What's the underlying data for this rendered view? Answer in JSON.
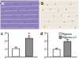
{
  "images": [
    {
      "label": "a"
    },
    {
      "label": "b"
    }
  ],
  "chart_data": [
    {
      "type": "bar",
      "title": "c",
      "categories": [
        null,
        null
      ],
      "values": [
        1.0,
        2.3
      ],
      "errors": [
        0.2,
        0.3
      ],
      "colors": [
        "#ffffff",
        "#8c8c8c"
      ],
      "ylim": [
        0,
        3
      ],
      "yticks": [
        0,
        1,
        2,
        3
      ],
      "annotation": "*"
    },
    {
      "type": "bar",
      "title": "d",
      "categories": [
        null
      ],
      "legend": "top-right",
      "ylim": [
        0,
        3
      ],
      "yticks": [
        0,
        1,
        2,
        3
      ],
      "series": [
        {
          "name": "Hypoxia",
          "color": "#ffffff",
          "values": [
            0.9
          ],
          "errors": [
            0.15
          ]
        },
        {
          "name": "Hypoxia+LC",
          "color": "#8c8c8c",
          "values": [
            1.9
          ],
          "errors": [
            0.25
          ]
        }
      ]
    }
  ]
}
